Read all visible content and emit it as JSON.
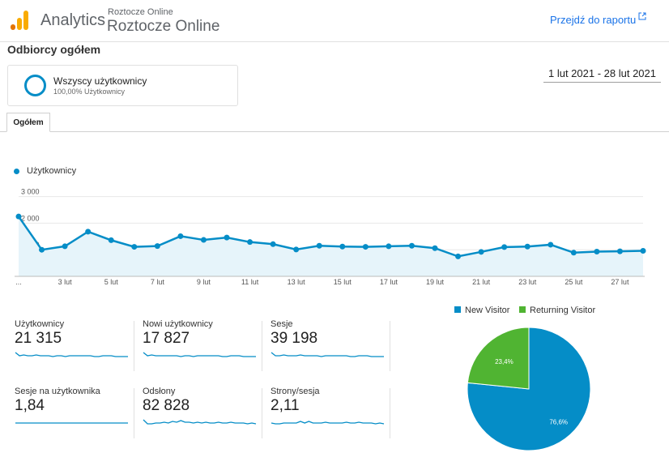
{
  "header": {
    "app_name": "Analytics",
    "account_small": "Roztocze Online",
    "account_big": "Roztocze Online",
    "report_link": "Przejdź do raportu"
  },
  "page_title": "Odbiorcy ogółem",
  "segment": {
    "name": "Wszyscy użytkownicy",
    "percent": "100,00% Użytkownicy"
  },
  "date_range": "1 lut 2021 - 28 lut 2021",
  "tab": "Ogółem",
  "colors": {
    "primary": "#058dc7",
    "secondary": "#50b432",
    "link": "#1a73e8"
  },
  "chart_data": [
    {
      "type": "area",
      "series": [
        {
          "name": "Użytkownicy",
          "values": [
            2250,
            1000,
            1130,
            1680,
            1360,
            1110,
            1140,
            1510,
            1370,
            1460,
            1290,
            1210,
            1010,
            1150,
            1120,
            1110,
            1130,
            1150,
            1060,
            750,
            920,
            1100,
            1120,
            1190,
            890,
            930,
            940,
            960
          ]
        }
      ],
      "x": [
        1,
        2,
        3,
        4,
        5,
        6,
        7,
        8,
        9,
        10,
        11,
        12,
        13,
        14,
        15,
        16,
        17,
        18,
        19,
        20,
        21,
        22,
        23,
        24,
        25,
        26,
        27,
        28
      ],
      "tick_labels": [
        "...",
        "3 lut",
        "5 lut",
        "7 lut",
        "9 lut",
        "11 lut",
        "13 lut",
        "15 lut",
        "17 lut",
        "19 lut",
        "21 lut",
        "23 lut",
        "25 lut",
        "27 lut"
      ],
      "y_ticks": [
        "3 000",
        "2 000",
        "1 000"
      ],
      "ylim": [
        0,
        3200
      ],
      "grid": true,
      "legend": "top-left"
    },
    {
      "type": "pie",
      "slices": [
        {
          "name": "New Visitor",
          "value": 76.6,
          "label": "76,6%"
        },
        {
          "name": "Returning Visitor",
          "value": 23.4,
          "label": "23,4%"
        }
      ],
      "legend": "top"
    }
  ],
  "metrics": [
    {
      "label": "Użytkownicy",
      "value": "21 315",
      "spark": [
        9,
        5,
        6,
        5,
        5,
        6,
        5,
        5,
        5,
        4,
        5,
        5,
        4,
        5,
        5,
        5,
        5,
        5,
        5,
        4,
        4,
        5,
        5,
        5,
        4,
        4,
        4,
        4
      ]
    },
    {
      "label": "Nowi użytkownicy",
      "value": "17 827",
      "spark": [
        9,
        5,
        6,
        5,
        5,
        5,
        5,
        5,
        5,
        4,
        5,
        5,
        4,
        5,
        5,
        5,
        5,
        5,
        5,
        4,
        4,
        5,
        5,
        5,
        4,
        4,
        4,
        4
      ]
    },
    {
      "label": "Sesje",
      "value": "39 198",
      "spark": [
        9,
        5,
        5,
        6,
        5,
        5,
        5,
        6,
        5,
        5,
        5,
        5,
        4,
        5,
        5,
        5,
        5,
        5,
        5,
        4,
        4,
        5,
        5,
        5,
        4,
        4,
        4,
        4
      ]
    },
    {
      "label": "Sesje na użytkownika",
      "value": "1,84",
      "spark": [
        5,
        5,
        5,
        5,
        5,
        5,
        5,
        5,
        5,
        5,
        5,
        5,
        5,
        5,
        5,
        5,
        5,
        5,
        5,
        5,
        5,
        5,
        5,
        5,
        5,
        5,
        5,
        5
      ]
    },
    {
      "label": "Odsłony",
      "value": "82 828",
      "spark": [
        9,
        4,
        4,
        5,
        5,
        6,
        5,
        7,
        6,
        8,
        6,
        6,
        5,
        6,
        5,
        6,
        5,
        5,
        6,
        5,
        5,
        6,
        5,
        5,
        5,
        4,
        5,
        4
      ]
    },
    {
      "label": "Strony/sesja",
      "value": "2,11",
      "spark": [
        5,
        4,
        4,
        5,
        5,
        5,
        5,
        7,
        5,
        7,
        5,
        5,
        5,
        6,
        5,
        5,
        5,
        5,
        6,
        5,
        5,
        6,
        5,
        5,
        5,
        4,
        5,
        4
      ]
    }
  ]
}
